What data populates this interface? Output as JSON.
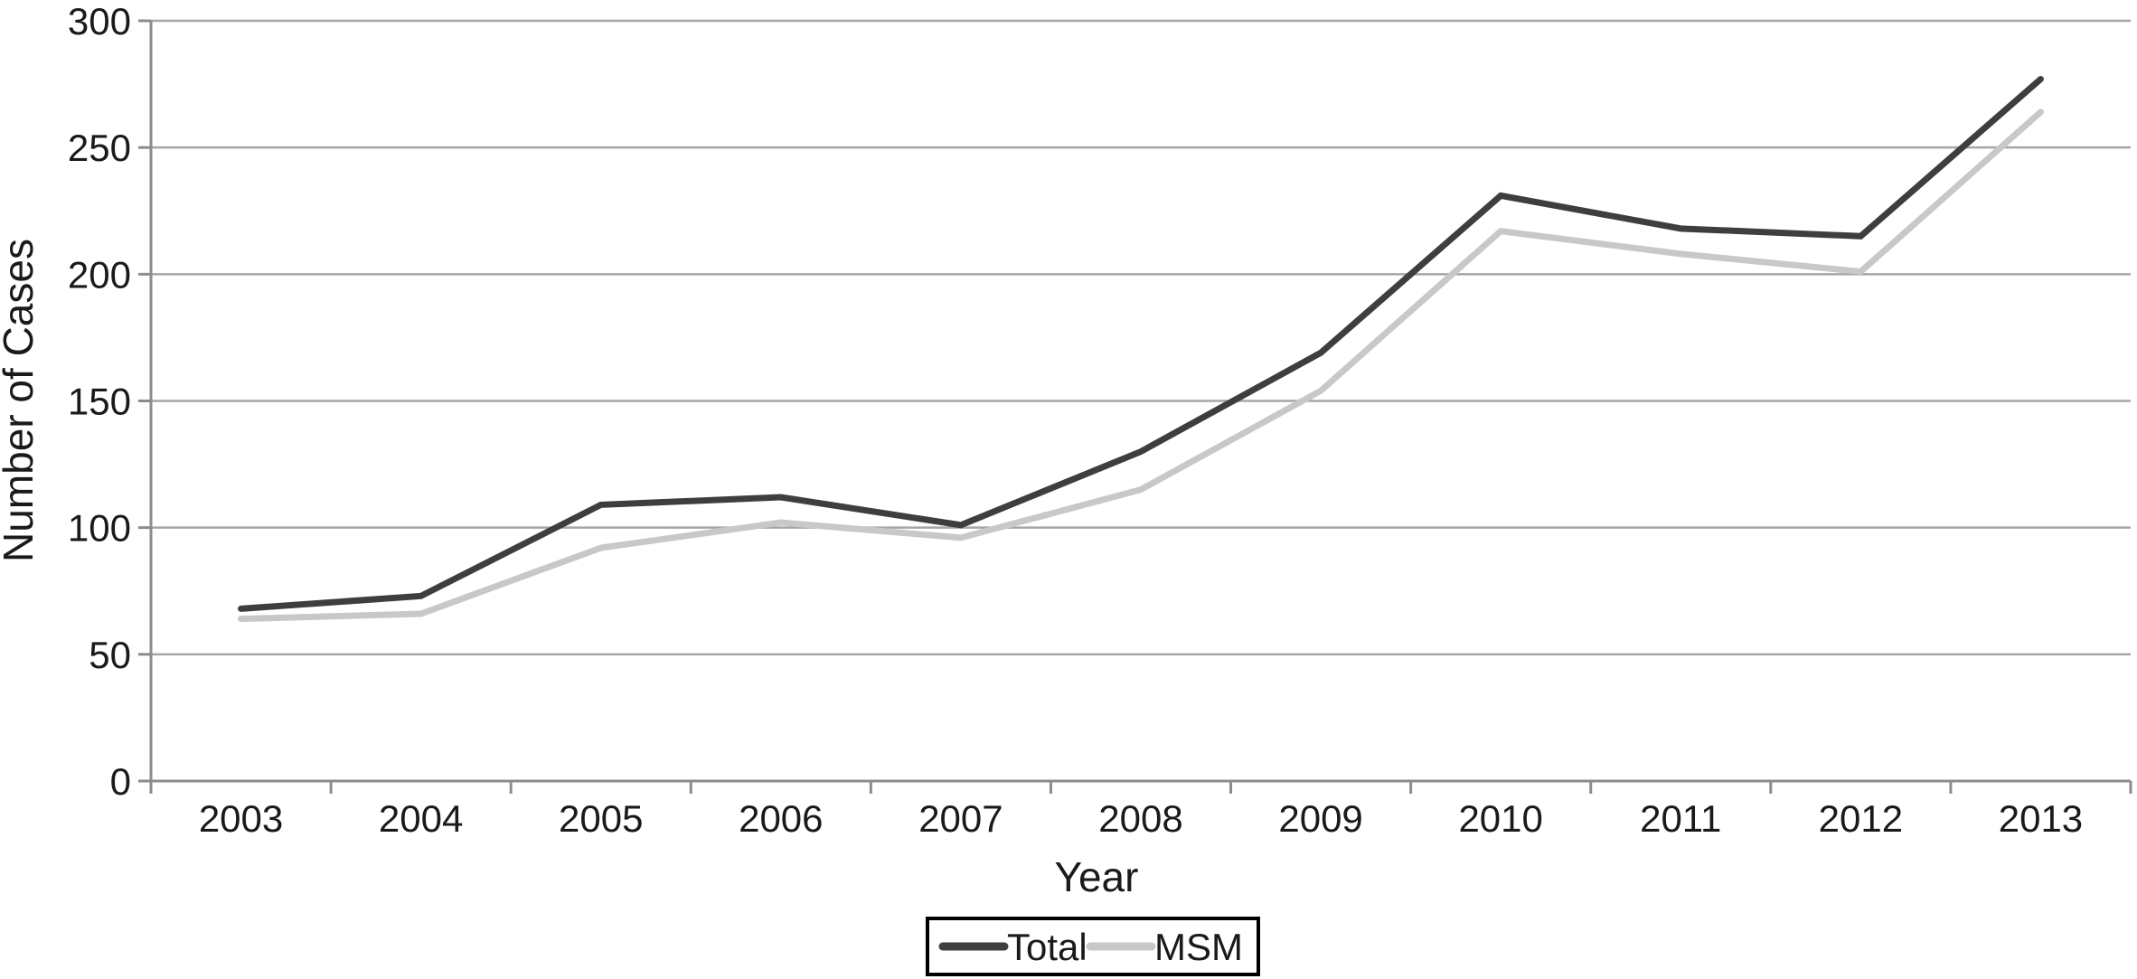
{
  "chart_data": {
    "type": "line",
    "title": "",
    "xlabel": "Year",
    "ylabel": "Number of Cases",
    "categories": [
      "2003",
      "2004",
      "2005",
      "2006",
      "2007",
      "2008",
      "2009",
      "2010",
      "2011",
      "2012",
      "2013"
    ],
    "series": [
      {
        "name": "Total",
        "color": "#3e3e40",
        "values": [
          68,
          73,
          109,
          112,
          101,
          130,
          169,
          231,
          218,
          215,
          277
        ]
      },
      {
        "name": "MSM",
        "color": "#c7c8ca",
        "values": [
          64,
          66,
          92,
          102,
          96,
          115,
          154,
          217,
          208,
          201,
          264
        ]
      }
    ],
    "ylim": [
      0,
      300
    ],
    "ytick_step": 50,
    "grid": true,
    "legend_position": "bottom-center",
    "colors": {
      "grid": "#a6a6a6",
      "axis": "#8c8c8c",
      "text": "#1a1a1a",
      "legend_border": "#000000",
      "background": "#ffffff"
    }
  }
}
